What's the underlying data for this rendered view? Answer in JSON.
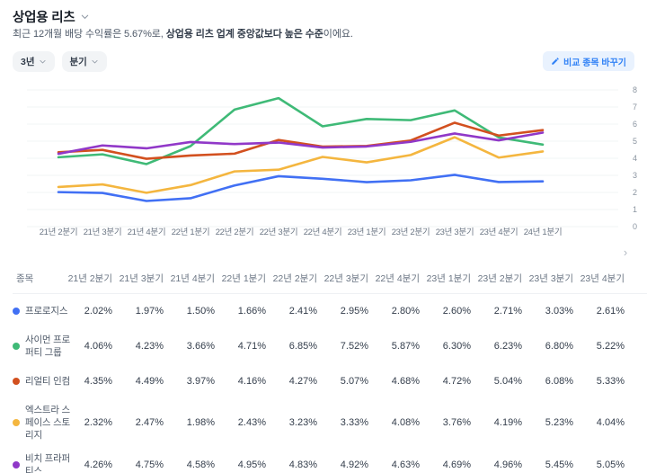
{
  "header": {
    "title": "상업용 리츠",
    "subtitle_prefix": "최근 12개월 배당 수익률은 5.67%로, ",
    "subtitle_bold": "상업용 리츠 업계 중앙값보다 높은 수준",
    "subtitle_suffix": "이에요."
  },
  "toolbar": {
    "period_label": "3년",
    "interval_label": "분기",
    "compare_button_label": "비교 종목 바꾸기"
  },
  "icons": {
    "scroll_next": "›",
    "pencil": "pencil-icon",
    "chevron_down": "chevron-down-icon"
  },
  "colors": {
    "accent_blue": "#3182f6",
    "grid": "#f2f4f6",
    "axis_label": "#8b95a1",
    "x_label": "#6b7684"
  },
  "chart_data": {
    "type": "line",
    "x": [
      "21년 2분기",
      "21년 3분기",
      "21년 4분기",
      "22년 1분기",
      "22년 2분기",
      "22년 3분기",
      "22년 4분기",
      "23년 1분기",
      "23년 2분기",
      "23년 3분기",
      "23년 4분기",
      "24년 1분기"
    ],
    "ylim": [
      0,
      8
    ],
    "yticks": [
      0,
      1,
      2,
      3,
      4,
      5,
      6,
      7,
      8
    ],
    "grid": true,
    "legend_position": "none",
    "unit": "%",
    "series": [
      {
        "name": "프로로지스",
        "color": "#4170f4",
        "values": [
          2.02,
          1.97,
          1.5,
          1.66,
          2.41,
          2.95,
          2.8,
          2.6,
          2.71,
          3.03,
          2.61,
          2.65
        ]
      },
      {
        "name": "사이먼 프로퍼티 그룹",
        "color": "#3fba77",
        "values": [
          4.06,
          4.23,
          3.66,
          4.71,
          6.85,
          7.52,
          5.87,
          6.3,
          6.23,
          6.8,
          5.22,
          4.8
        ]
      },
      {
        "name": "리얼티 인컴",
        "color": "#d2501f",
        "values": [
          4.35,
          4.49,
          3.97,
          4.16,
          4.27,
          5.07,
          4.68,
          4.72,
          5.04,
          6.08,
          5.33,
          5.65
        ]
      },
      {
        "name": "엑스트라 스페이스 스토리지",
        "color": "#f4b63f",
        "values": [
          2.32,
          2.47,
          1.98,
          2.43,
          3.23,
          3.33,
          4.08,
          3.76,
          4.19,
          5.23,
          4.04,
          4.4
        ]
      },
      {
        "name": "비치 프라퍼티스",
        "color": "#9038c8",
        "values": [
          4.26,
          4.75,
          4.58,
          4.95,
          4.83,
          4.92,
          4.63,
          4.69,
          4.96,
          5.45,
          5.05,
          5.5
        ]
      }
    ]
  },
  "table": {
    "name_header": "종목",
    "quarter_headers": [
      "21년 2분기",
      "21년 3분기",
      "21년 4분기",
      "22년 1분기",
      "22년 2분기",
      "22년 3분기",
      "22년 4분기",
      "23년 1분기",
      "23년 2분기",
      "23년 3분기",
      "23년 4분기"
    ],
    "rows": [
      {
        "name": "프로로지스",
        "color": "#4170f4",
        "values": [
          "2.02%",
          "1.97%",
          "1.50%",
          "1.66%",
          "2.41%",
          "2.95%",
          "2.80%",
          "2.60%",
          "2.71%",
          "3.03%",
          "2.61%"
        ]
      },
      {
        "name": "사이먼 프로퍼티 그룹",
        "color": "#3fba77",
        "values": [
          "4.06%",
          "4.23%",
          "3.66%",
          "4.71%",
          "6.85%",
          "7.52%",
          "5.87%",
          "6.30%",
          "6.23%",
          "6.80%",
          "5.22%"
        ]
      },
      {
        "name": "리얼티 인컴",
        "color": "#d2501f",
        "values": [
          "4.35%",
          "4.49%",
          "3.97%",
          "4.16%",
          "4.27%",
          "5.07%",
          "4.68%",
          "4.72%",
          "5.04%",
          "6.08%",
          "5.33%"
        ]
      },
      {
        "name": "엑스트라 스페이스 스토리지",
        "color": "#f4b63f",
        "values": [
          "2.32%",
          "2.47%",
          "1.98%",
          "2.43%",
          "3.23%",
          "3.33%",
          "4.08%",
          "3.76%",
          "4.19%",
          "5.23%",
          "4.04%"
        ]
      },
      {
        "name": "비치 프라퍼티스",
        "color": "#9038c8",
        "values": [
          "4.26%",
          "4.75%",
          "4.58%",
          "4.95%",
          "4.83%",
          "4.92%",
          "4.63%",
          "4.69%",
          "4.96%",
          "5.45%",
          "5.05%"
        ]
      }
    ]
  }
}
